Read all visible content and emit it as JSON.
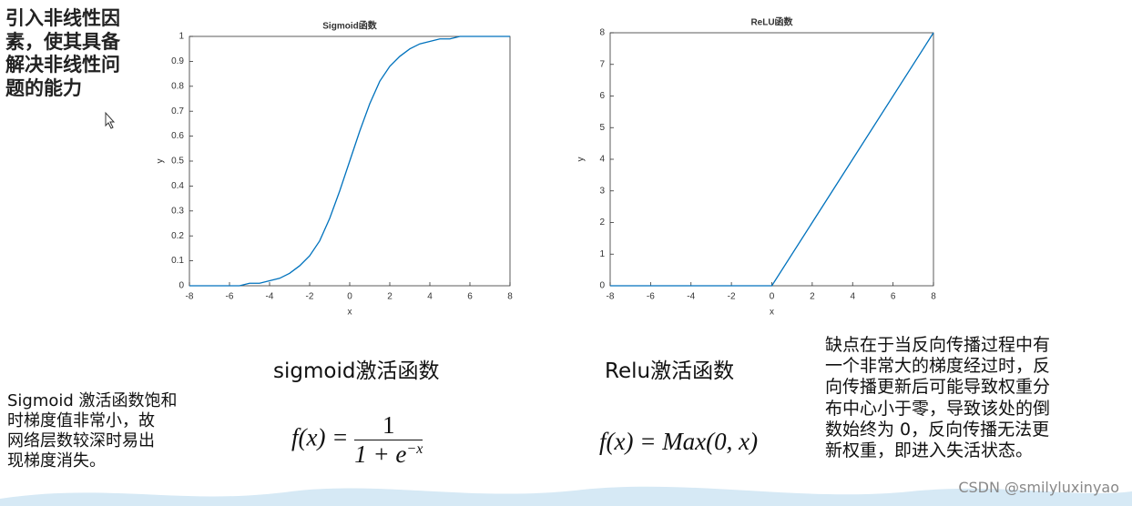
{
  "chart_data": [
    {
      "type": "line",
      "title": "Sigmoid函数",
      "x_label": "x",
      "y_label": "y",
      "color": "#0072bd",
      "x": [
        -8,
        -7.5,
        -7,
        -6.5,
        -6,
        -5.5,
        -5,
        -4.5,
        -4,
        -3.5,
        -3,
        -2.5,
        -2,
        -1.5,
        -1,
        -0.5,
        0,
        0.5,
        1,
        1.5,
        2,
        2.5,
        3,
        3.5,
        4,
        4.5,
        5,
        5.5,
        6,
        6.5,
        7,
        7.5,
        8
      ],
      "values": [
        0,
        0,
        0,
        0,
        0,
        0,
        0.01,
        0.01,
        0.02,
        0.03,
        0.05,
        0.08,
        0.12,
        0.18,
        0.27,
        0.38,
        0.5,
        0.62,
        0.73,
        0.82,
        0.88,
        0.92,
        0.95,
        0.97,
        0.98,
        0.99,
        0.99,
        1,
        1,
        1,
        1,
        1,
        1
      ],
      "xlim": [
        -8,
        8
      ],
      "xticks": [
        -8,
        -6,
        -4,
        -2,
        0,
        2,
        4,
        6,
        8
      ],
      "ylim": [
        0,
        1
      ],
      "yticks": [
        0,
        0.1,
        0.2,
        0.3,
        0.4,
        0.5,
        0.6,
        0.7,
        0.8,
        0.9,
        1
      ],
      "grid": false
    },
    {
      "type": "line",
      "title": "ReLU函数",
      "x_label": "x",
      "y_label": "y",
      "color": "#0072bd",
      "x": [
        -8,
        0,
        8
      ],
      "values": [
        0,
        0,
        8
      ],
      "xlim": [
        -8,
        8
      ],
      "xticks": [
        -8,
        -6,
        -4,
        -2,
        0,
        2,
        4,
        6,
        8
      ],
      "ylim": [
        0,
        8
      ],
      "yticks": [
        0,
        1,
        2,
        3,
        4,
        5,
        6,
        7,
        8
      ],
      "grid": false
    }
  ],
  "intro": [
    "引入非线性因",
    "素，使其具备",
    "解决非线性问",
    "题的能力"
  ],
  "captions": [
    "sigmoid激活函数",
    "Relu激活函数"
  ],
  "sigmoid_formula": {
    "lhs": "f(x) =",
    "numerator": "1",
    "denominator": "1 + e",
    "exponent": "−x"
  },
  "relu_formula": "f(x) = Max(0, x)",
  "sigmoid_note": [
    "Sigmoid 激活函数饱和",
    "时梯度值非常小，故",
    "网络层数较深时易出",
    "现梯度消失。"
  ],
  "relu_note": [
    "缺点在于当反向传播过程中有",
    "一个非常大的梯度经过时，反",
    "向传播更新后可能导致权重分",
    "布中心小于零，导致该处的倒",
    "数始终为 0，反向传播无法更",
    "新权重，即进入失活状态。"
  ],
  "watermark": "CSDN @smilyluxinyao"
}
